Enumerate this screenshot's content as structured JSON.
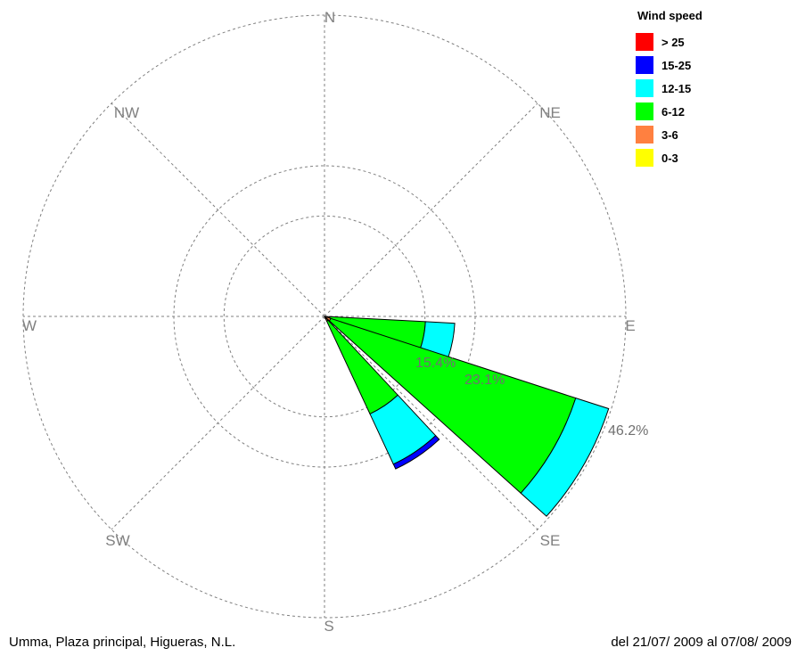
{
  "chart_data": {
    "type": "wind-rose",
    "direction_labels": [
      "N",
      "NE",
      "E",
      "SE",
      "S",
      "SW",
      "W",
      "NW"
    ],
    "ring_labels": [
      "15.4%",
      "23.1%",
      "46.2%"
    ],
    "ring_values": [
      15.4,
      23.1,
      46.2
    ],
    "legend_title": "Wind speed",
    "speed_bins": [
      {
        "label": "> 25",
        "color": "#ff0000"
      },
      {
        "label": "15-25",
        "color": "#0000ff"
      },
      {
        "label": "12-15",
        "color": "#00ffff"
      },
      {
        "label": "6-12",
        "color": "#00ff00"
      },
      {
        "label": "3-6",
        "color": "#ff8040"
      },
      {
        "label": "0-3",
        "color": "#ffff00"
      }
    ],
    "sectors": [
      {
        "direction": "E",
        "center_deg": 101,
        "half_width_deg": 8,
        "segments": [
          {
            "bin": "3-6",
            "to_pct": 0.8
          },
          {
            "bin": "6-12",
            "to_pct": 15.5
          },
          {
            "bin": "12-15",
            "to_pct": 20.0
          }
        ]
      },
      {
        "direction": "ESE",
        "center_deg": 120,
        "half_width_deg": 12,
        "segments": [
          {
            "bin": "3-6",
            "to_pct": 1.0
          },
          {
            "bin": "6-12",
            "to_pct": 40.5
          },
          {
            "bin": "12-15",
            "to_pct": 45.8
          }
        ]
      },
      {
        "direction": "SE",
        "center_deg": 146,
        "half_width_deg": 9,
        "segments": [
          {
            "bin": "3-6",
            "to_pct": 0.8
          },
          {
            "bin": "6-12",
            "to_pct": 16.5
          },
          {
            "bin": "12-15",
            "to_pct": 25.0
          },
          {
            "bin": "15-25",
            "to_pct": 25.8
          }
        ]
      }
    ]
  },
  "footer": {
    "station": "Umma, Plaza principal, Higueras, N.L.",
    "period": "del 21/07/ 2009 al 07/08/ 2009"
  }
}
